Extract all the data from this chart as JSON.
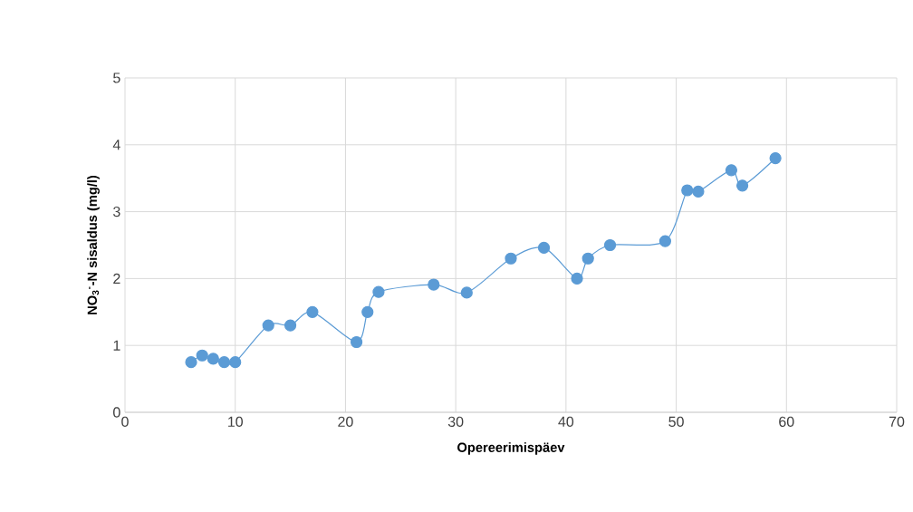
{
  "chart_data": {
    "type": "line",
    "xlabel": "Opereerimispäev",
    "ylabel": "NO$_{3}$$^{-}$-N sisaldus (mg/l)",
    "series": [
      {
        "color": "#5b9bd5",
        "x": [
          6,
          7,
          8,
          9,
          10,
          13,
          15,
          17,
          21,
          22,
          23,
          28,
          31,
          35,
          38,
          41,
          42,
          44,
          49,
          51,
          52,
          55,
          56,
          59
        ],
        "values": [
          0.75,
          0.85,
          0.8,
          0.75,
          0.75,
          1.3,
          1.3,
          1.5,
          1.05,
          1.5,
          1.8,
          1.91,
          1.79,
          2.3,
          2.46,
          2.0,
          2.3,
          2.5,
          2.56,
          3.32,
          3.3,
          3.62,
          3.39,
          3.8
        ]
      }
    ],
    "xlim": [
      0,
      70
    ],
    "xticks": [
      0,
      10,
      20,
      30,
      40,
      50,
      60,
      70
    ],
    "ylim": [
      0,
      5
    ],
    "yticks": [
      0,
      1,
      2,
      3,
      4,
      5
    ],
    "grid": true,
    "marker": "circle",
    "line_style": "solid"
  }
}
